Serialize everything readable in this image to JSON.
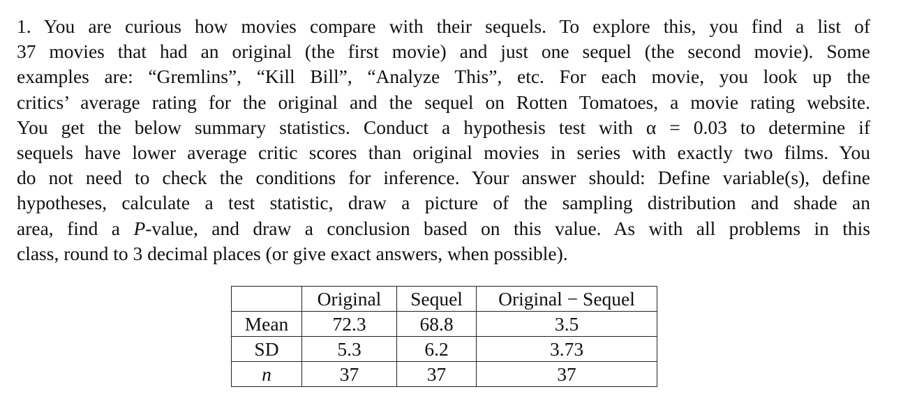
{
  "problem": {
    "lines": [
      "1. You are curious how movies compare with their sequels. To explore this, you find a list of",
      "37 movies that had an original (the first movie) and just one sequel (the second movie). Some",
      "examples are: “Gremlins”, “Kill Bill”, “Analyze This”, etc. For each movie, you look up the",
      "critics’ average rating for the original and the sequel on Rotten Tomatoes, a movie rating website.",
      "You get the below summary statistics. Conduct a hypothesis test with α = 0.03 to determine if",
      "sequels have lower average critic scores than original movies in series with exactly two films. You",
      "do not need to check the conditions for inference. Your answer should: Define variable(s), define",
      "hypotheses, calculate a test statistic, draw a picture of the sampling distribution and shade an"
    ],
    "line9_before": "area, find a ",
    "line9_italic": "P",
    "line9_after": "-value, and draw a conclusion based on this value. As with all problems in this",
    "line10": "class, round to 3 decimal places (or give exact answers, when possible)."
  },
  "table": {
    "headers": [
      "",
      "Original",
      "Sequel",
      "Original − Sequel"
    ],
    "rows": [
      [
        "Mean",
        "72.3",
        "68.8",
        "3.5"
      ],
      [
        "SD",
        "5.3",
        "6.2",
        "3.73"
      ],
      [
        "n",
        "37",
        "37",
        "37"
      ]
    ]
  }
}
